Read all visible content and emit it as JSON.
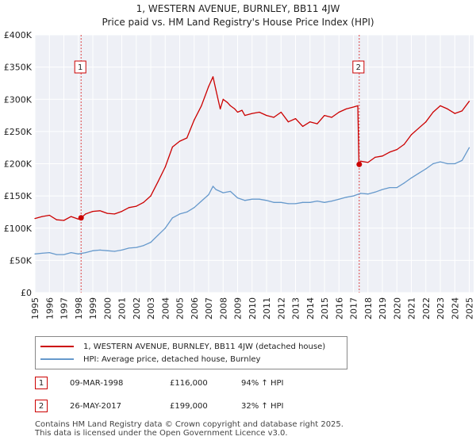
{
  "chart_data": {
    "type": "line",
    "title": "1, WESTERN AVENUE, BURNLEY, BB11 4JW",
    "subtitle": "Price paid vs. HM Land Registry's House Price Index (HPI)",
    "xlabel": "",
    "ylabel": "",
    "xlim": [
      1995,
      2025.3
    ],
    "ylim": [
      0,
      400000
    ],
    "x_ticks": [
      1995,
      1996,
      1997,
      1998,
      1999,
      2000,
      2001,
      2002,
      2003,
      2004,
      2005,
      2006,
      2007,
      2008,
      2009,
      2010,
      2011,
      2012,
      2013,
      2014,
      2015,
      2016,
      2017,
      2018,
      2019,
      2020,
      2021,
      2022,
      2023,
      2024,
      2025
    ],
    "y_ticks": [
      0,
      50000,
      100000,
      150000,
      200000,
      250000,
      300000,
      350000,
      400000
    ],
    "y_tick_labels": [
      "£0",
      "£50K",
      "£100K",
      "£150K",
      "£200K",
      "£250K",
      "£300K",
      "£350K",
      "£400K"
    ],
    "grid": true,
    "series": [
      {
        "name": "1, WESTERN AVENUE, BURNLEY, BB11 4JW (detached house)",
        "color": "#cc0000",
        "x": [
          1995.0,
          1995.5,
          1996.0,
          1996.5,
          1997.0,
          1997.5,
          1998.0,
          1998.19,
          1998.5,
          1999.0,
          1999.5,
          2000.0,
          2000.5,
          2001.0,
          2001.5,
          2002.0,
          2002.5,
          2003.0,
          2003.5,
          2004.0,
          2004.5,
          2005.0,
          2005.5,
          2006.0,
          2006.5,
          2007.0,
          2007.3,
          2007.5,
          2007.8,
          2008.0,
          2008.3,
          2008.5,
          2008.8,
          2009.0,
          2009.3,
          2009.5,
          2010.0,
          2010.5,
          2011.0,
          2011.5,
          2012.0,
          2012.5,
          2013.0,
          2013.5,
          2014.0,
          2014.5,
          2015.0,
          2015.5,
          2016.0,
          2016.5,
          2017.0,
          2017.3,
          2017.38,
          2017.5,
          2018.0,
          2018.5,
          2019.0,
          2019.5,
          2020.0,
          2020.5,
          2021.0,
          2021.5,
          2022.0,
          2022.5,
          2023.0,
          2023.5,
          2024.0,
          2024.5,
          2025.0
        ],
        "values": [
          115000,
          118000,
          120000,
          113000,
          112000,
          118000,
          114000,
          116000,
          122000,
          126000,
          127000,
          123000,
          122000,
          126000,
          132000,
          134000,
          140000,
          150000,
          172000,
          195000,
          226000,
          235000,
          240000,
          268000,
          290000,
          320000,
          335000,
          315000,
          285000,
          300000,
          295000,
          290000,
          285000,
          280000,
          283000,
          275000,
          278000,
          280000,
          275000,
          272000,
          280000,
          265000,
          270000,
          258000,
          265000,
          262000,
          275000,
          272000,
          280000,
          285000,
          288000,
          290000,
          199000,
          204000,
          202000,
          210000,
          212000,
          218000,
          222000,
          230000,
          245000,
          255000,
          265000,
          280000,
          290000,
          285000,
          278000,
          282000,
          297000
        ]
      },
      {
        "name": "HPI: Average price, detached house, Burnley",
        "color": "#6699cc",
        "x": [
          1995.0,
          1995.5,
          1996.0,
          1996.5,
          1997.0,
          1997.5,
          1998.0,
          1998.5,
          1999.0,
          1999.5,
          2000.0,
          2000.5,
          2001.0,
          2001.5,
          2002.0,
          2002.5,
          2003.0,
          2003.5,
          2004.0,
          2004.5,
          2005.0,
          2005.5,
          2006.0,
          2006.5,
          2007.0,
          2007.3,
          2007.5,
          2008.0,
          2008.5,
          2009.0,
          2009.5,
          2010.0,
          2010.5,
          2011.0,
          2011.5,
          2012.0,
          2012.5,
          2013.0,
          2013.5,
          2014.0,
          2014.5,
          2015.0,
          2015.5,
          2016.0,
          2016.5,
          2017.0,
          2017.5,
          2018.0,
          2018.5,
          2019.0,
          2019.5,
          2020.0,
          2020.5,
          2021.0,
          2021.5,
          2022.0,
          2022.5,
          2023.0,
          2023.5,
          2024.0,
          2024.5,
          2025.0
        ],
        "values": [
          60000,
          61000,
          62000,
          59000,
          59000,
          62000,
          60000,
          62000,
          65000,
          66000,
          65000,
          64000,
          66000,
          69000,
          70000,
          73000,
          78000,
          89000,
          100000,
          116000,
          122000,
          125000,
          132000,
          142000,
          152000,
          165000,
          160000,
          155000,
          157000,
          147000,
          143000,
          145000,
          145000,
          143000,
          140000,
          140000,
          138000,
          138000,
          140000,
          140000,
          142000,
          140000,
          142000,
          145000,
          148000,
          150000,
          154000,
          153000,
          156000,
          160000,
          163000,
          163000,
          170000,
          178000,
          185000,
          192000,
          200000,
          203000,
          200000,
          200000,
          205000,
          225000
        ]
      }
    ],
    "markers": [
      {
        "label": "1",
        "x": 1998.19,
        "value": 116000
      },
      {
        "label": "2",
        "x": 2017.4,
        "value": 199000
      }
    ]
  },
  "legend": {
    "series1": "1, WESTERN AVENUE, BURNLEY, BB11 4JW (detached house)",
    "series2": "HPI: Average price, detached house, Burnley"
  },
  "transactions": [
    {
      "num": "1",
      "date": "09-MAR-1998",
      "price": "£116,000",
      "hpi": "94% ↑ HPI"
    },
    {
      "num": "2",
      "date": "26-MAY-2017",
      "price": "£199,000",
      "hpi": "32% ↑ HPI"
    }
  ],
  "footer": {
    "line1": "Contains HM Land Registry data © Crown copyright and database right 2025.",
    "line2": "This data is licensed under the Open Government Licence v3.0."
  }
}
